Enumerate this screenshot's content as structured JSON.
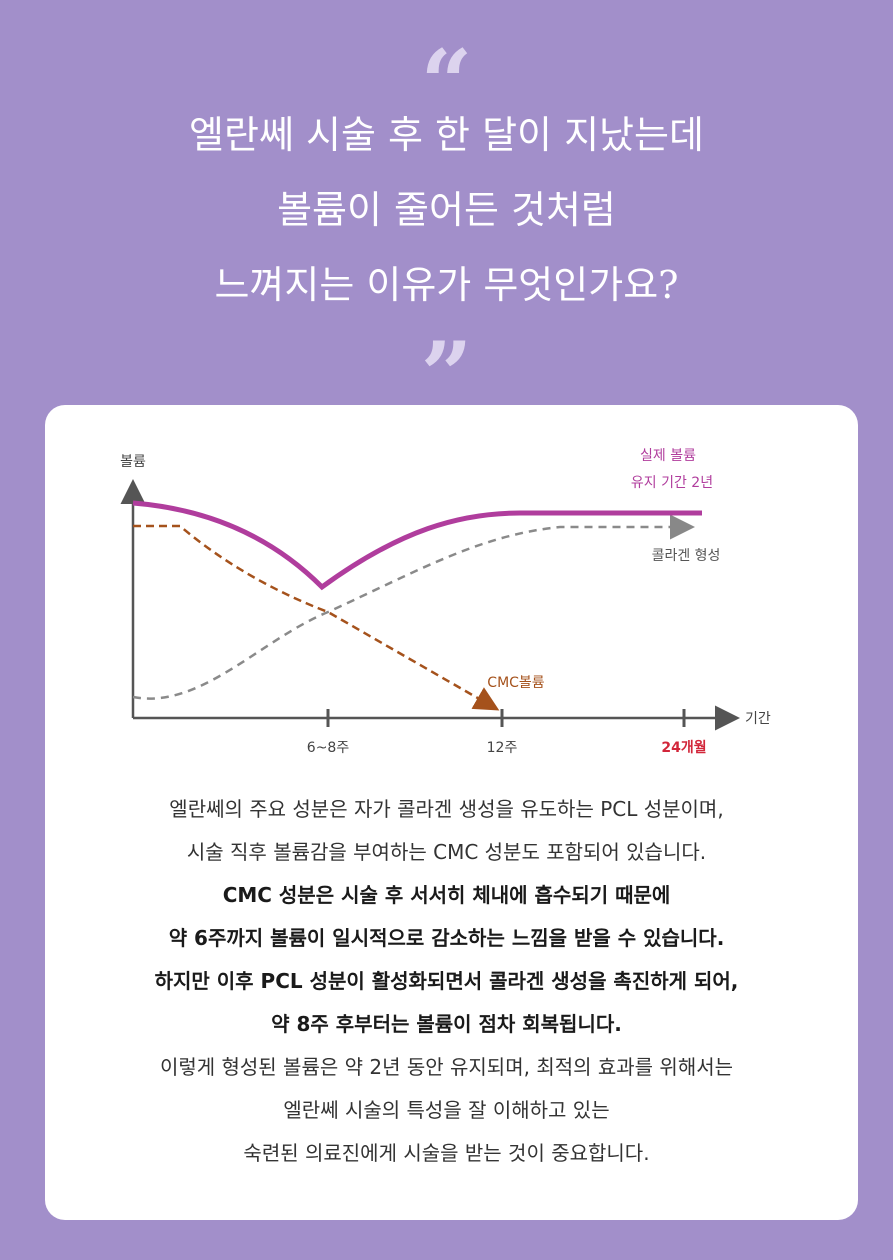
{
  "quote": {
    "open_mark": "“",
    "lines": [
      "엘란쎄 시술 후 한 달이 지났는데",
      "볼륨이 줄어든 것처럼",
      "느껴지는 이유가 무엇인가요?"
    ],
    "close_mark": "”"
  },
  "diagram": {
    "y_label": "볼륨",
    "x_label": "기간",
    "x_ticks": [
      "6~8주",
      "12주",
      "24개월"
    ],
    "actual_volume": [
      "실제 볼륨",
      "유지 기간 2년"
    ],
    "collagen": "콜라겐 형성",
    "cmc": "CMC볼륨"
  },
  "description": {
    "intro": [
      "엘란쎄의 주요 성분은 자가 콜라겐 생성을 유도하는 PCL 성분이며,",
      "시술 직후 볼륨감을 부여하는 CMC 성분도 포함되어 있습니다."
    ],
    "emphasis": [
      "CMC 성분은 시술 후 서서히 체내에 흡수되기 때문에",
      "약 6주까지 볼륨이 일시적으로 감소하는 느낌을 받을 수 있습니다.",
      "하지만 이후 PCL 성분이 활성화되면서 콜라겐 생성을 촉진하게 되어,",
      "약 8주 후부터는 볼륨이 점차 회복됩니다."
    ],
    "closing": [
      "이렇게 형성된 볼륨은 약 2년 동안 유지되며, 최적의 효과를 위해서는",
      "엘란쎄 시술의 특성을 잘 이해하고 있는",
      "숙련된 의료진에게 시술을 받는 것이 중요합니다."
    ]
  }
}
